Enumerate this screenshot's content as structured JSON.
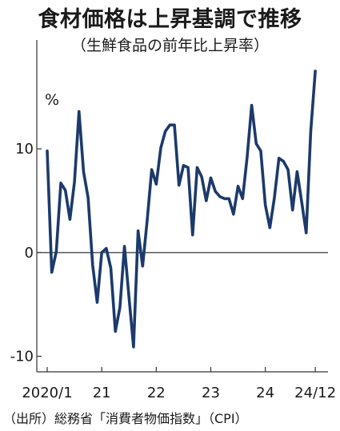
{
  "chart_data": {
    "type": "line",
    "title": "食材価格は上昇基調で推移",
    "subtitle": "（生鮮食品の前年比上昇率）",
    "unit_label": "%",
    "source": "（出所）総務省「消費者物価指数」（CPI）",
    "ylim": [
      -11.5,
      20.5
    ],
    "yticks": [
      10,
      0,
      -10
    ],
    "ytick_labels": [
      "10",
      "0",
      "-10"
    ],
    "xticks": [
      {
        "index": 0,
        "label": "2020/1"
      },
      {
        "index": 12,
        "label": "21"
      },
      {
        "index": 24,
        "label": "22"
      },
      {
        "index": 36,
        "label": "23"
      },
      {
        "index": 48,
        "label": "24"
      },
      {
        "index": 59,
        "label": "24/12"
      }
    ],
    "grid": false,
    "colors": {
      "line": "#1c3a6b",
      "axis": "#333333"
    },
    "x": [
      "2020/1",
      "2020/2",
      "2020/3",
      "2020/4",
      "2020/5",
      "2020/6",
      "2020/7",
      "2020/8",
      "2020/9",
      "2020/10",
      "2020/11",
      "2020/12",
      "2021/1",
      "2021/2",
      "2021/3",
      "2021/4",
      "2021/5",
      "2021/6",
      "2021/7",
      "2021/8",
      "2021/9",
      "2021/10",
      "2021/11",
      "2021/12",
      "2022/1",
      "2022/2",
      "2022/3",
      "2022/4",
      "2022/5",
      "2022/6",
      "2022/7",
      "2022/8",
      "2022/9",
      "2022/10",
      "2022/11",
      "2022/12",
      "2023/1",
      "2023/2",
      "2023/3",
      "2023/4",
      "2023/5",
      "2023/6",
      "2023/7",
      "2023/8",
      "2023/9",
      "2023/10",
      "2023/11",
      "2023/12",
      "2024/1",
      "2024/2",
      "2024/3",
      "2024/4",
      "2024/5",
      "2024/6",
      "2024/7",
      "2024/8",
      "2024/9",
      "2024/10",
      "2024/11",
      "2024/12"
    ],
    "series": [
      {
        "values": [
          9.8,
          -1.9,
          0.1,
          6.7,
          6.0,
          3.2,
          6.8,
          13.6,
          7.8,
          5.3,
          -1.2,
          -4.8,
          0.0,
          0.4,
          -1.5,
          -7.6,
          -5.3,
          0.6,
          -4.3,
          -9.1,
          2.1,
          -1.3,
          3.1,
          8.0,
          6.6,
          10.1,
          11.7,
          12.3,
          12.3,
          6.5,
          8.4,
          8.2,
          1.7,
          8.2,
          7.3,
          5.0,
          7.2,
          5.9,
          5.4,
          5.2,
          5.2,
          3.7,
          6.4,
          5.2,
          9.2,
          14.2,
          10.5,
          9.8,
          4.6,
          2.4,
          5.3,
          9.1,
          8.8,
          8.0,
          4.1,
          7.8,
          4.9,
          1.9,
          11.7,
          17.5
        ]
      }
    ]
  }
}
